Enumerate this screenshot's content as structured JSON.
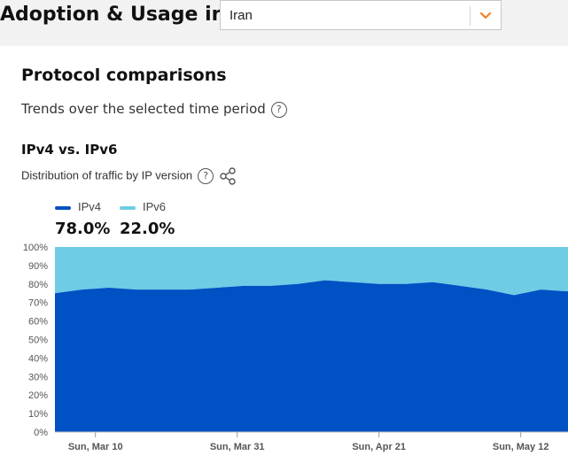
{
  "header": {
    "title": "Adoption & Usage in"
  },
  "location_select": {
    "value": "Iran",
    "chevron_color": "#f48120",
    "icon": "chevron-down-icon"
  },
  "section": {
    "title": "Protocol comparisons",
    "subtitle": "Trends over the selected time period"
  },
  "chart_card": {
    "title": "IPv4 vs. IPv6",
    "subtitle": "Distribution of traffic by IP version"
  },
  "legend": [
    {
      "name": "IPv4",
      "value": "78.0%",
      "color": "#0051c3"
    },
    {
      "name": "IPv6",
      "value": "22.0%",
      "color": "#6ecce5"
    }
  ],
  "chart_data": {
    "type": "area",
    "stacked": true,
    "x": [
      "Mar 4",
      "Mar 8",
      "Mar 12",
      "Mar 16",
      "Mar 20",
      "Mar 24",
      "Mar 28",
      "Apr 1",
      "Apr 5",
      "Apr 9",
      "Apr 13",
      "Apr 17",
      "Apr 21",
      "Apr 25",
      "Apr 29",
      "May 3",
      "May 7",
      "May 11",
      "May 15",
      "May 19"
    ],
    "series": [
      {
        "name": "IPv4",
        "values": [
          75,
          77,
          78,
          77,
          77,
          77,
          78,
          79,
          79,
          80,
          82,
          81,
          80,
          80,
          81,
          79,
          77,
          74,
          77,
          76
        ]
      },
      {
        "name": "IPv6",
        "values": [
          25,
          23,
          22,
          23,
          23,
          23,
          22,
          21,
          21,
          20,
          18,
          19,
          20,
          20,
          19,
          21,
          23,
          26,
          23,
          24
        ]
      }
    ],
    "ylim": [
      0,
      100
    ],
    "y_ticks": [
      "0%",
      "10%",
      "20%",
      "30%",
      "40%",
      "50%",
      "60%",
      "70%",
      "80%",
      "90%",
      "100%"
    ],
    "x_ticks": [
      "Sun, Mar 10",
      "Sun, Mar 31",
      "Sun, Apr 21",
      "Sun, May 12"
    ],
    "grid": false
  }
}
